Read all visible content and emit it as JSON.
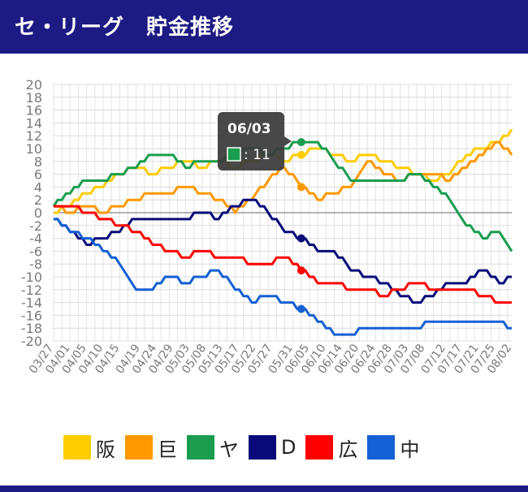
{
  "header": {
    "title": "セ・リーグ　貯金推移"
  },
  "tooltip": {
    "date": "06/03",
    "value_text": ": 11",
    "color": "#1a9d4f"
  },
  "chart_data": {
    "type": "line",
    "title": "セ・リーグ　貯金推移",
    "xlabel": "",
    "ylabel": "",
    "ylim": [
      -20,
      20
    ],
    "yticks": [
      20,
      18,
      16,
      14,
      12,
      10,
      8,
      6,
      4,
      2,
      0,
      -2,
      -4,
      -6,
      -8,
      -10,
      -12,
      -14,
      -16,
      -18,
      -20
    ],
    "xticks": [
      "03/27",
      "04/01",
      "04/05",
      "04/10",
      "04/15",
      "04/19",
      "04/24",
      "04/29",
      "05/03",
      "05/08",
      "05/13",
      "05/17",
      "05/22",
      "05/27",
      "05/31",
      "06/05",
      "06/10",
      "06/14",
      "06/20",
      "06/24",
      "06/28",
      "07/03",
      "07/08",
      "07/12",
      "07/17",
      "07/21",
      "07/25",
      "08/02"
    ],
    "x_count": 112,
    "grid": true,
    "legend_position": "bottom",
    "series": [
      {
        "name": "阪",
        "color": "#ffcc00",
        "end_value": 13,
        "values": [
          [
            0,
            0
          ],
          [
            4,
            1
          ],
          [
            8,
            3
          ],
          [
            12,
            4
          ],
          [
            16,
            6
          ],
          [
            20,
            7
          ],
          [
            24,
            6
          ],
          [
            28,
            7
          ],
          [
            32,
            8
          ],
          [
            36,
            7
          ],
          [
            40,
            8
          ],
          [
            44,
            7
          ],
          [
            48,
            8
          ],
          [
            52,
            9
          ],
          [
            56,
            8
          ],
          [
            60,
            9
          ],
          [
            64,
            10
          ],
          [
            68,
            9
          ],
          [
            72,
            8
          ],
          [
            76,
            9
          ],
          [
            80,
            8
          ],
          [
            84,
            7
          ],
          [
            88,
            6
          ],
          [
            92,
            5
          ],
          [
            96,
            6
          ],
          [
            100,
            9
          ],
          [
            104,
            10
          ],
          [
            108,
            11
          ],
          [
            111,
            13
          ]
        ]
      },
      {
        "name": "巨",
        "color": "#ff9900",
        "end_value": 9,
        "values": [
          [
            0,
            1
          ],
          [
            4,
            0
          ],
          [
            8,
            1
          ],
          [
            12,
            0
          ],
          [
            16,
            1
          ],
          [
            20,
            2
          ],
          [
            24,
            3
          ],
          [
            28,
            3
          ],
          [
            32,
            4
          ],
          [
            36,
            3
          ],
          [
            40,
            2
          ],
          [
            44,
            0
          ],
          [
            48,
            2
          ],
          [
            52,
            5
          ],
          [
            56,
            7
          ],
          [
            60,
            4
          ],
          [
            64,
            2
          ],
          [
            68,
            3
          ],
          [
            72,
            4
          ],
          [
            76,
            8
          ],
          [
            80,
            6
          ],
          [
            84,
            5
          ],
          [
            88,
            6
          ],
          [
            92,
            6
          ],
          [
            96,
            5
          ],
          [
            100,
            7
          ],
          [
            104,
            9
          ],
          [
            108,
            11
          ],
          [
            111,
            9
          ]
        ]
      },
      {
        "name": "ヤ",
        "color": "#1a9d4f",
        "end_value": -6,
        "values": [
          [
            0,
            1
          ],
          [
            4,
            3
          ],
          [
            8,
            5
          ],
          [
            12,
            5
          ],
          [
            16,
            6
          ],
          [
            20,
            7
          ],
          [
            24,
            9
          ],
          [
            28,
            9
          ],
          [
            32,
            7
          ],
          [
            36,
            8
          ],
          [
            40,
            8
          ],
          [
            44,
            9
          ],
          [
            48,
            10
          ],
          [
            52,
            9
          ],
          [
            56,
            10
          ],
          [
            60,
            11
          ],
          [
            64,
            11
          ],
          [
            68,
            8
          ],
          [
            72,
            5
          ],
          [
            76,
            5
          ],
          [
            80,
            5
          ],
          [
            84,
            5
          ],
          [
            88,
            6
          ],
          [
            92,
            4
          ],
          [
            96,
            2
          ],
          [
            100,
            -2
          ],
          [
            104,
            -4
          ],
          [
            108,
            -3
          ],
          [
            111,
            -6
          ]
        ]
      },
      {
        "name": "D",
        "color": "#0a0a7a",
        "end_value": -10,
        "values": [
          [
            0,
            -1
          ],
          [
            4,
            -3
          ],
          [
            8,
            -5
          ],
          [
            12,
            -4
          ],
          [
            16,
            -3
          ],
          [
            20,
            -1
          ],
          [
            24,
            -1
          ],
          [
            28,
            -1
          ],
          [
            32,
            -1
          ],
          [
            36,
            0
          ],
          [
            40,
            -1
          ],
          [
            44,
            1
          ],
          [
            48,
            2
          ],
          [
            52,
            0
          ],
          [
            56,
            -3
          ],
          [
            60,
            -4
          ],
          [
            64,
            -6
          ],
          [
            68,
            -6
          ],
          [
            72,
            -9
          ],
          [
            76,
            -10
          ],
          [
            80,
            -11
          ],
          [
            84,
            -13
          ],
          [
            88,
            -14
          ],
          [
            92,
            -13
          ],
          [
            96,
            -11
          ],
          [
            100,
            -11
          ],
          [
            104,
            -9
          ],
          [
            108,
            -11
          ],
          [
            111,
            -10
          ]
        ]
      },
      {
        "name": "広",
        "color": "#ff0000",
        "end_value": -14,
        "values": [
          [
            0,
            1
          ],
          [
            4,
            1
          ],
          [
            8,
            0
          ],
          [
            12,
            -1
          ],
          [
            16,
            -2
          ],
          [
            20,
            -3
          ],
          [
            24,
            -5
          ],
          [
            28,
            -6
          ],
          [
            32,
            -7
          ],
          [
            36,
            -6
          ],
          [
            40,
            -7
          ],
          [
            44,
            -7
          ],
          [
            48,
            -8
          ],
          [
            52,
            -8
          ],
          [
            56,
            -7
          ],
          [
            60,
            -9
          ],
          [
            64,
            -11
          ],
          [
            68,
            -11
          ],
          [
            72,
            -12
          ],
          [
            76,
            -12
          ],
          [
            80,
            -13
          ],
          [
            84,
            -12
          ],
          [
            88,
            -11
          ],
          [
            92,
            -12
          ],
          [
            96,
            -12
          ],
          [
            100,
            -12
          ],
          [
            104,
            -13
          ],
          [
            108,
            -14
          ],
          [
            111,
            -14
          ]
        ]
      },
      {
        "name": "中",
        "color": "#1560d4",
        "end_value": -18,
        "values": [
          [
            0,
            -1
          ],
          [
            4,
            -3
          ],
          [
            8,
            -4
          ],
          [
            12,
            -6
          ],
          [
            16,
            -8
          ],
          [
            20,
            -12
          ],
          [
            24,
            -12
          ],
          [
            28,
            -10
          ],
          [
            32,
            -11
          ],
          [
            36,
            -10
          ],
          [
            40,
            -9
          ],
          [
            44,
            -12
          ],
          [
            48,
            -14
          ],
          [
            52,
            -13
          ],
          [
            56,
            -14
          ],
          [
            60,
            -15
          ],
          [
            64,
            -17
          ],
          [
            68,
            -19
          ],
          [
            72,
            -19
          ],
          [
            76,
            -18
          ],
          [
            80,
            -18
          ],
          [
            84,
            -18
          ],
          [
            88,
            -18
          ],
          [
            92,
            -17
          ],
          [
            96,
            -17
          ],
          [
            100,
            -17
          ],
          [
            104,
            -17
          ],
          [
            108,
            -17
          ],
          [
            111,
            -18
          ]
        ]
      }
    ],
    "highlight_index": 60
  },
  "legend": [
    {
      "label": "阪",
      "color": "#ffcc00"
    },
    {
      "label": "巨",
      "color": "#ff9900"
    },
    {
      "label": "ヤ",
      "color": "#1a9d4f"
    },
    {
      "label": "D",
      "color": "#0a0a7a"
    },
    {
      "label": "広",
      "color": "#ff0000"
    },
    {
      "label": "中",
      "color": "#1560d4"
    }
  ]
}
